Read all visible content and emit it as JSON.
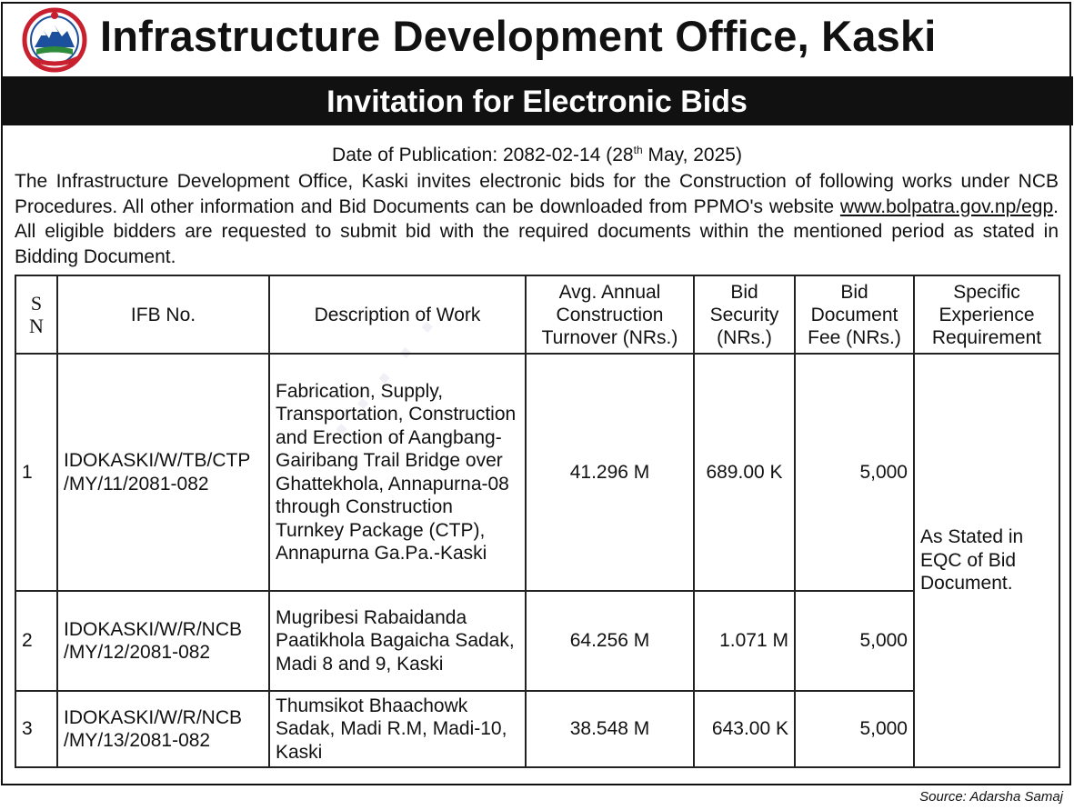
{
  "header": {
    "emblem_icon": "nepal-government-emblem-icon",
    "office_name": "Infrastructure Development Office, Kaski"
  },
  "banner": {
    "title": "Invitation for Electronic Bids"
  },
  "publication": {
    "label": "Date of Publication: 2082-02-14 (28",
    "superscript": "th",
    "suffix": " May, 2025)"
  },
  "intro": {
    "part1": "The Infrastructure Development Office, Kaski invites electronic bids for the Construction of following works under NCB Procedures. All other information and Bid Documents can be downloaded from PPMO's website ",
    "url": "www.bolpatra.gov.np/egp",
    "part2": ". All eligible bidders are requested to submit bid with the required documents within the mentioned period as stated in Bidding Document."
  },
  "table": {
    "headers": {
      "sn_top": "S",
      "sn_bottom": "N",
      "ifb": "IFB No.",
      "description": "Description of Work",
      "turnover": "Avg. Annual Construction Turnover (NRs.)",
      "security": "Bid Security (NRs.)",
      "fee": "Bid Document Fee (NRs.)",
      "experience": "Specific Experience Requirement"
    },
    "rows": [
      {
        "sn": "1",
        "ifb": "IDOKASKI/W/TB/CTP /MY/11/2081-082",
        "description": "Fabrication, Supply, Transportation, Construction and Erection of Aangbang-Gairibang Trail Bridge over Ghattekhola, Annapurna-08 through Construction Turnkey Package (CTP), Annapurna Ga.Pa.-Kaski",
        "turnover": "41.296 M",
        "security": "689.00 K",
        "fee": "5,000"
      },
      {
        "sn": "2",
        "ifb": "IDOKASKI/W/R/NCB /MY/12/2081-082",
        "description": "Mugribesi Rabaidanda Paatikhola Bagaicha Sadak, Madi 8 and 9, Kaski",
        "turnover": "64.256 M",
        "security": "1.071 M",
        "fee": "5,000"
      },
      {
        "sn": "3",
        "ifb": "IDOKASKI/W/R/NCB /MY/13/2081-082",
        "description": "Thumsikot Bhaachowk Sadak, Madi R.M, Madi-10, Kaski",
        "turnover": "38.548 M",
        "security": "643.00 K",
        "fee": "5,000"
      }
    ],
    "experience_all": "As Stated in EQC of Bid Document."
  },
  "source": "Source: Adarsha Samaj",
  "colors": {
    "banner_bg": "#111111",
    "banner_text": "#ffffff",
    "emblem_red": "#c8202f",
    "emblem_blue": "#1c4f9c"
  }
}
